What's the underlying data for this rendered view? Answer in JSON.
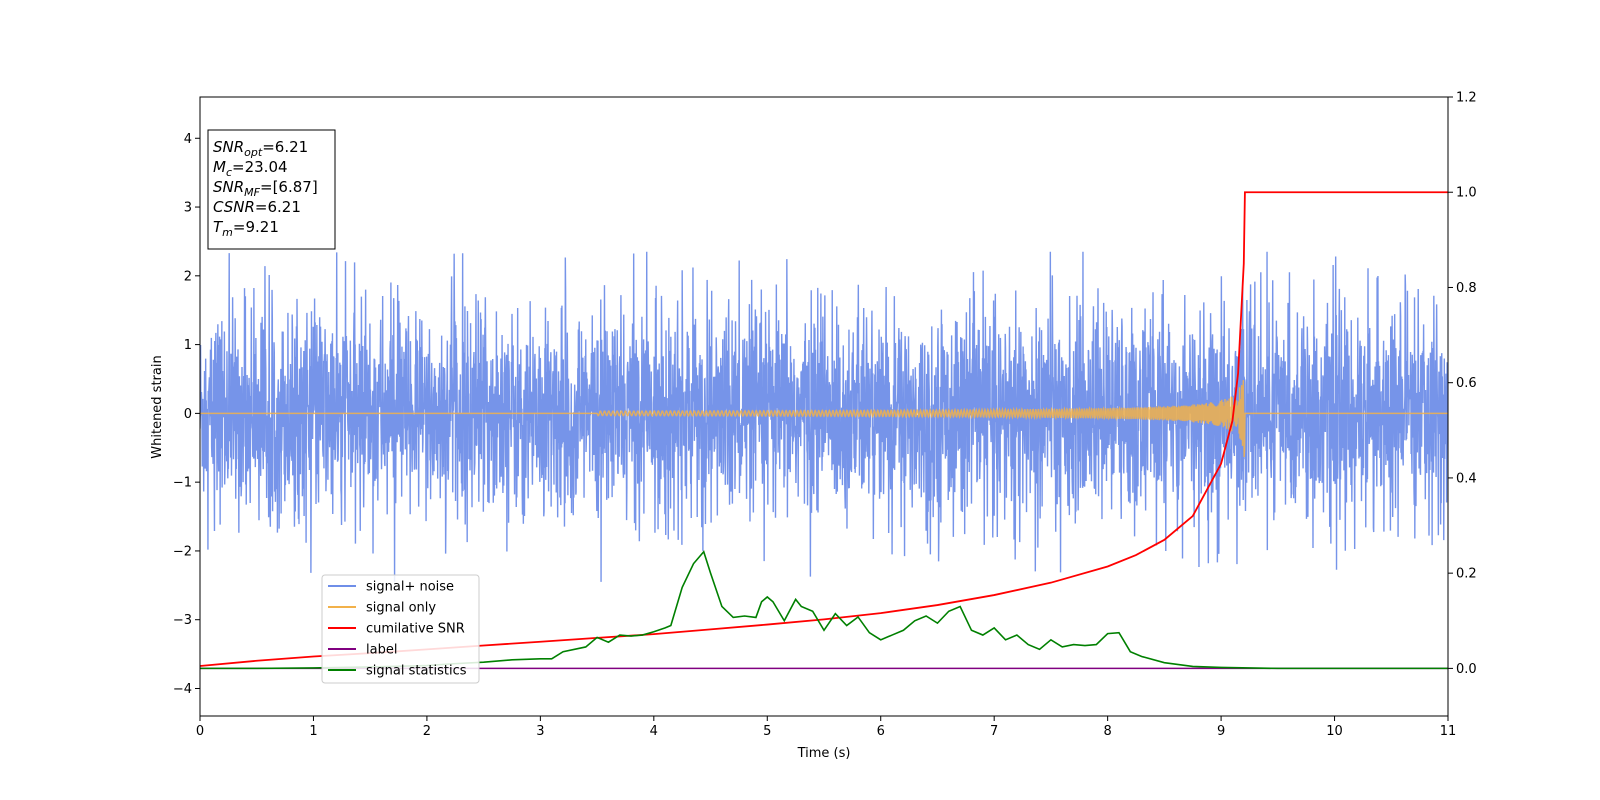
{
  "chart_data": {
    "type": "line",
    "xlabel": "Time (s)",
    "ylabel": "Whitened strain",
    "xlim": [
      0,
      11
    ],
    "ylim": [
      -4.4,
      4.6
    ],
    "y2lim": [
      -0.1,
      1.2
    ],
    "x_ticks": [
      0,
      1,
      2,
      3,
      4,
      5,
      6,
      7,
      8,
      9,
      10,
      11
    ],
    "x_tick_labels": [
      "0",
      "1",
      "2",
      "3",
      "4",
      "5",
      "6",
      "7",
      "8",
      "9",
      "10",
      "11"
    ],
    "y_ticks": [
      -4,
      -3,
      -2,
      -1,
      0,
      1,
      2,
      3,
      4
    ],
    "y_tick_labels": [
      "−4",
      "−3",
      "−2",
      "−1",
      "0",
      "1",
      "2",
      "3",
      "4"
    ],
    "y2_ticks": [
      0,
      0.2,
      0.4,
      0.6,
      0.8,
      1.0,
      1.2
    ],
    "y2_tick_labels": [
      "0.0",
      "0.2",
      "0.4",
      "0.6",
      "0.8",
      "1.0",
      "1.2"
    ],
    "grid": false,
    "legend_position": "lower-left",
    "info_box": {
      "lines": [
        {
          "symbol": "SNR",
          "sub": "opt",
          "value": "=6.21"
        },
        {
          "symbol": "M",
          "sub": "c",
          "value": "=23.04"
        },
        {
          "symbol": "SNR",
          "sub": "MF",
          "value": "=[6.87]"
        },
        {
          "symbol": "CSNR",
          "sub": "",
          "value": "=6.21"
        },
        {
          "symbol": "T",
          "sub": "m",
          "value": "=9.21"
        }
      ]
    },
    "series": [
      {
        "name": "signal+ noise",
        "color": "#6f8ee8",
        "axis": "left",
        "envelope": {
          "x": [
            0,
            1,
            2,
            3,
            4,
            5,
            6,
            7,
            8,
            9,
            10,
            11
          ],
          "band": [
            1.3,
            1.3,
            1.3,
            1.3,
            1.3,
            1.3,
            1.3,
            1.3,
            1.3,
            1.3,
            1.3,
            1.3
          ],
          "peak_max": 2.35,
          "peak_min": -2.45
        }
      },
      {
        "name": "signal only",
        "color": "#f2b14a",
        "axis": "left",
        "chirp": {
          "t_merger": 9.21,
          "peak_amplitude": 0.75,
          "start_time": 3.5
        }
      },
      {
        "name": "cumilative SNR",
        "color": "#ff0000",
        "axis": "right",
        "x": [
          0,
          0.5,
          1,
          1.5,
          2,
          2.5,
          3,
          3.5,
          4,
          4.5,
          5,
          5.5,
          6,
          6.5,
          7,
          7.5,
          8,
          8.25,
          8.5,
          8.75,
          9,
          9.1,
          9.15,
          9.2,
          9.21,
          11
        ],
        "values": [
          0.005,
          0.016,
          0.025,
          0.032,
          0.04,
          0.048,
          0.056,
          0.064,
          0.072,
          0.082,
          0.092,
          0.103,
          0.116,
          0.133,
          0.154,
          0.18,
          0.214,
          0.238,
          0.27,
          0.32,
          0.43,
          0.52,
          0.62,
          0.85,
          1.0,
          1.0
        ]
      },
      {
        "name": "label",
        "color": "#800080",
        "axis": "right",
        "x": [
          0,
          11
        ],
        "values": [
          0.0,
          0.0
        ]
      },
      {
        "name": "signal statistics",
        "color": "#008000",
        "axis": "right",
        "x": [
          0,
          0.5,
          1,
          1.5,
          2,
          2.25,
          2.5,
          2.75,
          3,
          3.1,
          3.2,
          3.4,
          3.5,
          3.6,
          3.7,
          3.8,
          3.9,
          4.0,
          4.1,
          4.15,
          4.25,
          4.35,
          4.44,
          4.5,
          4.6,
          4.7,
          4.8,
          4.9,
          4.95,
          5.0,
          5.05,
          5.15,
          5.25,
          5.3,
          5.4,
          5.5,
          5.6,
          5.7,
          5.8,
          5.9,
          6.0,
          6.1,
          6.2,
          6.3,
          6.4,
          6.5,
          6.6,
          6.7,
          6.8,
          6.9,
          7.0,
          7.1,
          7.2,
          7.3,
          7.4,
          7.5,
          7.6,
          7.7,
          7.8,
          7.9,
          8.0,
          8.1,
          8.2,
          8.3,
          8.5,
          8.75,
          9.0,
          9.5,
          10,
          10.5,
          11
        ],
        "values": [
          0.0,
          0.0,
          0.001,
          0.003,
          0.006,
          0.01,
          0.013,
          0.018,
          0.02,
          0.02,
          0.035,
          0.045,
          0.065,
          0.055,
          0.07,
          0.068,
          0.07,
          0.077,
          0.085,
          0.09,
          0.17,
          0.22,
          0.245,
          0.2,
          0.13,
          0.107,
          0.11,
          0.107,
          0.14,
          0.15,
          0.14,
          0.1,
          0.145,
          0.13,
          0.12,
          0.08,
          0.115,
          0.09,
          0.108,
          0.075,
          0.06,
          0.07,
          0.08,
          0.1,
          0.11,
          0.095,
          0.12,
          0.13,
          0.08,
          0.07,
          0.085,
          0.06,
          0.07,
          0.05,
          0.04,
          0.06,
          0.045,
          0.05,
          0.048,
          0.05,
          0.073,
          0.075,
          0.035,
          0.025,
          0.012,
          0.004,
          0.002,
          0.0,
          0.0,
          0.0,
          0.0
        ]
      }
    ]
  }
}
